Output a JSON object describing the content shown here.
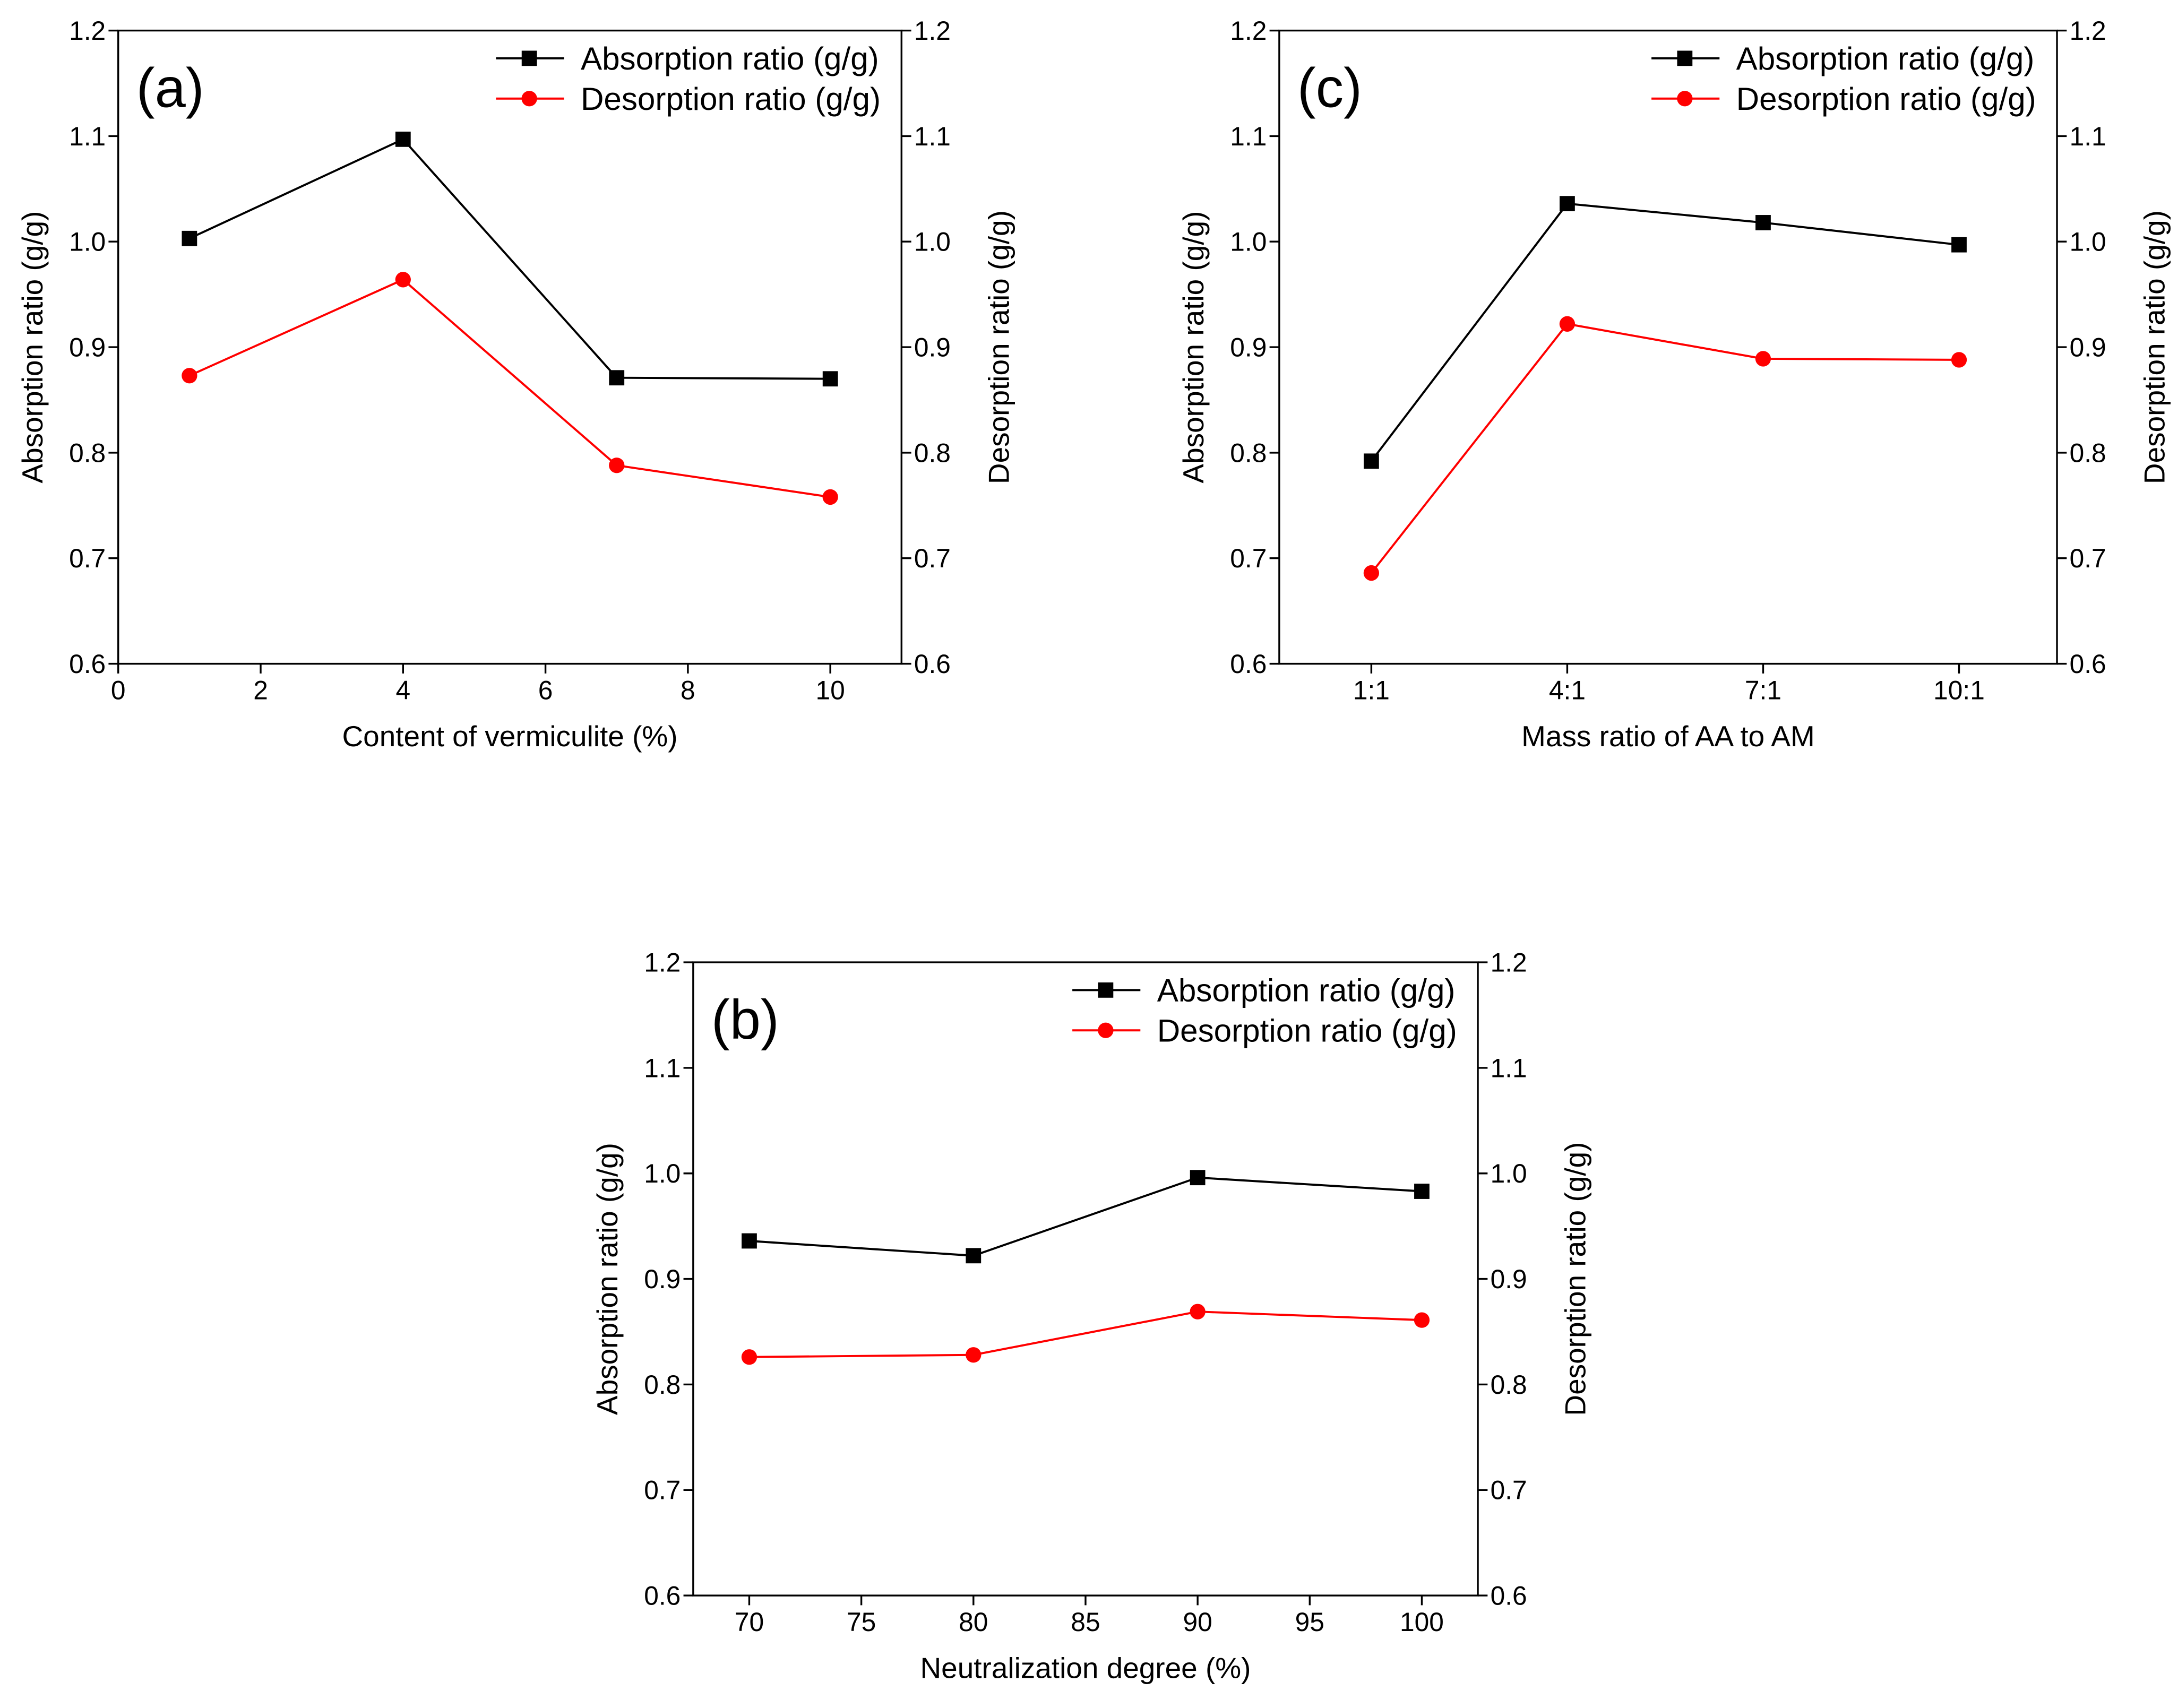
{
  "figure": {
    "background": "#ffffff"
  },
  "chart_data": [
    {
      "panel": "(a)",
      "type": "line",
      "xlabel": "Content of vermiculite (%)",
      "ylabel": "Absorption ratio (g/g)",
      "y2label": "Desorption ratio (g/g)",
      "xlim": [
        0,
        11
      ],
      "ylim": [
        0.6,
        1.2
      ],
      "xticks": [
        "0",
        "2",
        "4",
        "6",
        "8",
        "10"
      ],
      "yticks": [
        "0.6",
        "0.7",
        "0.8",
        "0.9",
        "1.0",
        "1.1",
        "1.2"
      ],
      "grid": false,
      "legend": "top-right",
      "x": [
        1,
        4,
        7,
        10
      ],
      "series": [
        {
          "name": "Absorption ratio (g/g)",
          "marker": "square",
          "color": "#000000",
          "values": [
            1.003,
            1.097,
            0.871,
            0.87
          ]
        },
        {
          "name": "Desorption ratio (g/g)",
          "marker": "circle",
          "color": "#ff0000",
          "values": [
            0.873,
            0.964,
            0.788,
            0.758
          ]
        }
      ]
    },
    {
      "panel": "(b)",
      "type": "line",
      "xlabel": "Neutralization degree (%)",
      "ylabel": "Absorption ratio (g/g)",
      "y2label": "Desorption ratio (g/g)",
      "xlim": [
        67.5,
        102.5
      ],
      "ylim": [
        0.6,
        1.2
      ],
      "xticks": [
        "70",
        "75",
        "80",
        "85",
        "90",
        "95",
        "100"
      ],
      "yticks": [
        "0.6",
        "0.7",
        "0.8",
        "0.9",
        "1.0",
        "1.1",
        "1.2"
      ],
      "grid": false,
      "legend": "top-right",
      "x": [
        70,
        80,
        90,
        100
      ],
      "series": [
        {
          "name": "Absorption ratio (g/g)",
          "marker": "square",
          "color": "#000000",
          "values": [
            0.936,
            0.922,
            0.996,
            0.983
          ]
        },
        {
          "name": "Desorption ratio (g/g)",
          "marker": "circle",
          "color": "#ff0000",
          "values": [
            0.826,
            0.828,
            0.869,
            0.861
          ]
        }
      ]
    },
    {
      "panel": "(c)",
      "type": "line",
      "xlabel": "Mass ratio of AA to AM",
      "ylabel": "Absorption ratio (g/g)",
      "y2label": "Desorption ratio (g/g)",
      "ylim": [
        0.6,
        1.2
      ],
      "categories": [
        "1:1",
        "4:1",
        "7:1",
        "10:1"
      ],
      "yticks": [
        "0.6",
        "0.7",
        "0.8",
        "0.9",
        "1.0",
        "1.1",
        "1.2"
      ],
      "grid": false,
      "legend": "top-right",
      "series": [
        {
          "name": "Absorption ratio (g/g)",
          "marker": "square",
          "color": "#000000",
          "values": [
            0.792,
            1.036,
            1.018,
            0.997
          ]
        },
        {
          "name": "Desorption ratio (g/g)",
          "marker": "circle",
          "color": "#ff0000",
          "values": [
            0.686,
            0.922,
            0.889,
            0.888
          ]
        }
      ]
    }
  ]
}
